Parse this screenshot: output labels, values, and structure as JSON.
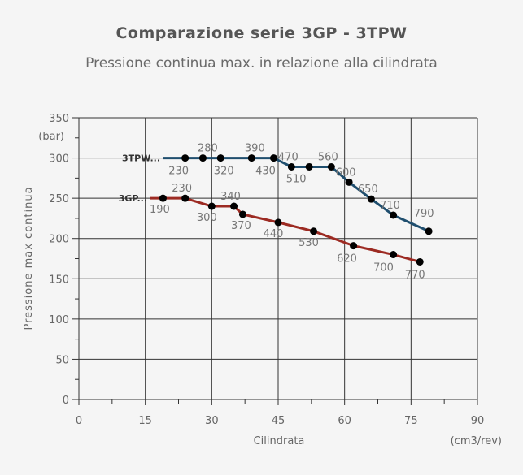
{
  "chart_data": {
    "type": "line",
    "title": "Comparazione serie 3GP - 3TPW",
    "subtitle": "Pressione continua max. in relazione alla cilindrata",
    "xlabel": "Cilindrata",
    "xunit": "(cm3/rev)",
    "ylabel": "Pressione max continua",
    "yunit": "(bar)",
    "xlim": [
      0,
      90
    ],
    "ylim": [
      0,
      350
    ],
    "xticks": [
      0,
      15,
      30,
      45,
      60,
      75,
      90
    ],
    "yticks": [
      0,
      50,
      100,
      150,
      200,
      250,
      300,
      350
    ],
    "grid": true,
    "series": [
      {
        "name": "3TPW...",
        "color": "#1f4e6e",
        "x": [
          24,
          28,
          32,
          39,
          44,
          48,
          52,
          57,
          61,
          66,
          71,
          79
        ],
        "y": [
          300,
          300,
          300,
          300,
          300,
          289,
          289,
          289,
          270,
          249,
          229,
          209
        ],
        "labels": [
          "230",
          "280",
          "320",
          "390",
          "430",
          "470",
          "510",
          "560",
          "600",
          "650",
          "710",
          "790"
        ]
      },
      {
        "name": "3GP...",
        "color": "#9c2a22",
        "x": [
          19,
          24,
          30,
          35,
          37,
          45,
          53,
          62,
          71,
          77
        ],
        "y": [
          250,
          250,
          240,
          240,
          230,
          220,
          209,
          191,
          180,
          171
        ],
        "labels": [
          "190",
          "230",
          "300",
          "340",
          "370",
          "440",
          "530",
          "620",
          "700",
          "770"
        ]
      }
    ]
  }
}
